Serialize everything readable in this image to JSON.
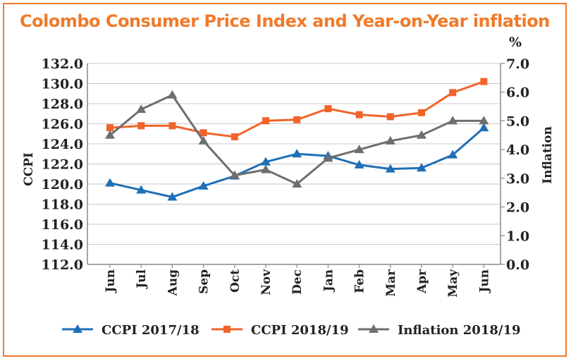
{
  "chart_data": {
    "type": "line",
    "title": "Colombo Consumer Price Index and Year-on-Year inflation",
    "categories": [
      "Jun",
      "Jul",
      "Aug",
      "Sep",
      "Oct",
      "Nov",
      "Dec",
      "Jan",
      "Feb",
      "Mar",
      "Apr",
      "May",
      "Jun"
    ],
    "ylabel_left": "CCPI",
    "ylabel_right": "Inflation",
    "right_unit": "%",
    "ylim_left": [
      112.0,
      132.0
    ],
    "ylim_right": [
      0.0,
      7.0
    ],
    "yticks_left": [
      "112.0",
      "114.0",
      "116.0",
      "118.0",
      "120.0",
      "122.0",
      "124.0",
      "126.0",
      "128.0",
      "130.0",
      "132.0"
    ],
    "yticks_right": [
      "0.0",
      "1.0",
      "2.0",
      "3.0",
      "4.0",
      "5.0",
      "6.0",
      "7.0"
    ],
    "grid": "horizontal",
    "legend_position": "bottom",
    "series": [
      {
        "name": "CCPI 2017/18",
        "axis": "left",
        "color": "#1f6fb5",
        "marker": "triangle",
        "values": [
          120.1,
          119.4,
          118.7,
          119.8,
          120.8,
          122.2,
          123.0,
          122.8,
          121.9,
          121.5,
          121.6,
          122.9,
          125.6
        ]
      },
      {
        "name": "CCPI 2018/19",
        "axis": "left",
        "color": "#f0642a",
        "marker": "square",
        "values": [
          125.6,
          125.8,
          125.8,
          125.1,
          124.7,
          126.3,
          126.4,
          127.5,
          126.9,
          126.7,
          127.1,
          129.1,
          130.2
        ]
      },
      {
        "name": "Inflation 2018/19",
        "axis": "right",
        "color": "#6d6e70",
        "marker": "triangle",
        "values": [
          4.5,
          5.4,
          5.9,
          4.3,
          3.1,
          3.3,
          2.8,
          3.7,
          4.0,
          4.3,
          4.5,
          5.0,
          5.0
        ]
      }
    ]
  }
}
